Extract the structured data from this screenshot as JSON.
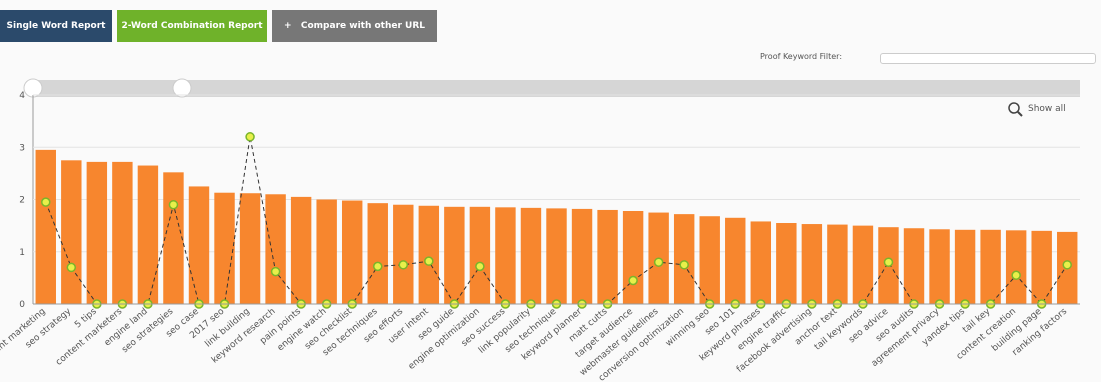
{
  "buttons": [
    "Single Word Report",
    "2-Word Combination Report",
    "Compare with other URL"
  ],
  "filter_label": "Proof Keyword Filter:",
  "show_all": "Show all",
  "chart_data": {
    "type": "bar-line",
    "categories": [
      "content marketing",
      "seo strategy",
      "5 tips",
      "content marketers",
      "engine land",
      "seo strategies",
      "seo case",
      "2017 seo",
      "link building",
      "keyword research",
      "pain points",
      "engine watch",
      "seo checklist",
      "seo techniques",
      "seo efforts",
      "user intent",
      "seo guide",
      "engine optimization",
      "seo success",
      "link popularity",
      "seo technique",
      "keyword planner",
      "matt cutts",
      "target audience",
      "webmaster guidelines",
      "conversion optimization",
      "winning seo",
      "seo 101",
      "keyword phrases",
      "engine traffic",
      "facebook advertising",
      "anchor text",
      "tail keywords",
      "seo advice",
      "seo audits",
      "agreement privacy",
      "yandex tips",
      "tail key",
      "content creation",
      "building page",
      "ranking factors"
    ],
    "series": [
      {
        "type": "bar",
        "color": "#f7862e",
        "values": [
          2.95,
          2.75,
          2.72,
          2.72,
          2.65,
          2.52,
          2.25,
          2.13,
          2.12,
          2.1,
          2.05,
          2.0,
          1.98,
          1.93,
          1.9,
          1.88,
          1.86,
          1.86,
          1.85,
          1.84,
          1.83,
          1.82,
          1.8,
          1.78,
          1.75,
          1.72,
          1.68,
          1.65,
          1.58,
          1.55,
          1.53,
          1.52,
          1.5,
          1.47,
          1.45,
          1.43,
          1.42,
          1.42,
          1.41,
          1.4,
          1.38
        ]
      },
      {
        "type": "line",
        "color": "#e8f04a",
        "values": [
          1.95,
          0.7,
          0,
          0,
          0,
          1.9,
          0,
          0,
          3.2,
          0.62,
          0,
          0,
          0,
          0.72,
          0.75,
          0.82,
          0,
          0.72,
          0,
          0,
          0,
          0,
          0,
          0.45,
          0.8,
          0.75,
          0,
          0,
          0,
          0,
          0,
          0,
          0,
          0.8,
          0,
          0,
          0,
          0,
          0.55,
          0,
          0.75
        ]
      }
    ],
    "ylim": [
      0,
      4
    ],
    "yticks": [
      0,
      1,
      2,
      3,
      4
    ],
    "grid": true
  }
}
